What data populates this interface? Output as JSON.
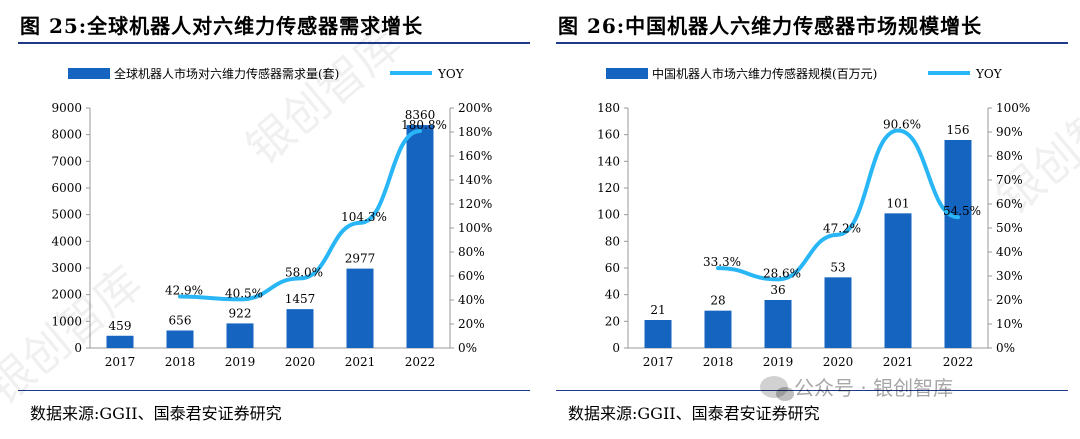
{
  "watermark": {
    "text": "银创智库"
  },
  "wechat": {
    "label": "公众号 · 银创智库"
  },
  "chart_data": [
    {
      "type": "bar",
      "title": "图 25:全球机器人对六维力传感器需求增长",
      "source": "数据来源:GGII、国泰君安证券研究",
      "legend": {
        "bar": "全球机器人市场对六维力传感器需求量(套)",
        "line": "YOY",
        "position": "top"
      },
      "categories": [
        "2017",
        "2018",
        "2019",
        "2020",
        "2021",
        "2022"
      ],
      "values": [
        459,
        656,
        922,
        1457,
        2977,
        8360
      ],
      "value_labels": [
        "459",
        "656",
        "922",
        "1457",
        "2977",
        "8360"
      ],
      "yoy": [
        null,
        42.9,
        40.5,
        58.0,
        104.3,
        180.8
      ],
      "yoy_labels": [
        "",
        "42.9%",
        "40.5%",
        "58.0%",
        "104.3%",
        "180.8%"
      ],
      "ylim": [
        0,
        9000
      ],
      "yticks": [
        "0",
        "1000",
        "2000",
        "3000",
        "4000",
        "5000",
        "6000",
        "7000",
        "8000",
        "9000"
      ],
      "y2lim": [
        0,
        200
      ],
      "y2ticks": [
        "0%",
        "20%",
        "40%",
        "60%",
        "80%",
        "100%",
        "120%",
        "140%",
        "160%",
        "180%",
        "200%"
      ],
      "colors": {
        "bar": "#1565c0",
        "line": "#29b6f6"
      }
    },
    {
      "type": "bar",
      "title": "图 26:中国机器人六维力传感器市场规模增长",
      "source": "数据来源:GGII、国泰君安证券研究",
      "legend": {
        "bar": "中国机器人市场六维力传感器规模(百万元)",
        "line": "YOY",
        "position": "top"
      },
      "categories": [
        "2017",
        "2018",
        "2019",
        "2020",
        "2021",
        "2022"
      ],
      "values": [
        21,
        28,
        36,
        53,
        101,
        156
      ],
      "value_labels": [
        "21",
        "28",
        "36",
        "53",
        "101",
        "156"
      ],
      "yoy": [
        null,
        33.3,
        28.6,
        47.2,
        90.6,
        54.5
      ],
      "yoy_labels": [
        "",
        "33.3%",
        "28.6%",
        "47.2%",
        "90.6%",
        "54.5%"
      ],
      "ylim": [
        0,
        180
      ],
      "yticks": [
        "0",
        "20",
        "40",
        "60",
        "80",
        "100",
        "120",
        "140",
        "160",
        "180"
      ],
      "y2lim": [
        0,
        100
      ],
      "y2ticks": [
        "0%",
        "10%",
        "20%",
        "30%",
        "40%",
        "50%",
        "60%",
        "70%",
        "80%",
        "90%",
        "100%"
      ],
      "colors": {
        "bar": "#1565c0",
        "line": "#29b6f6"
      }
    }
  ]
}
